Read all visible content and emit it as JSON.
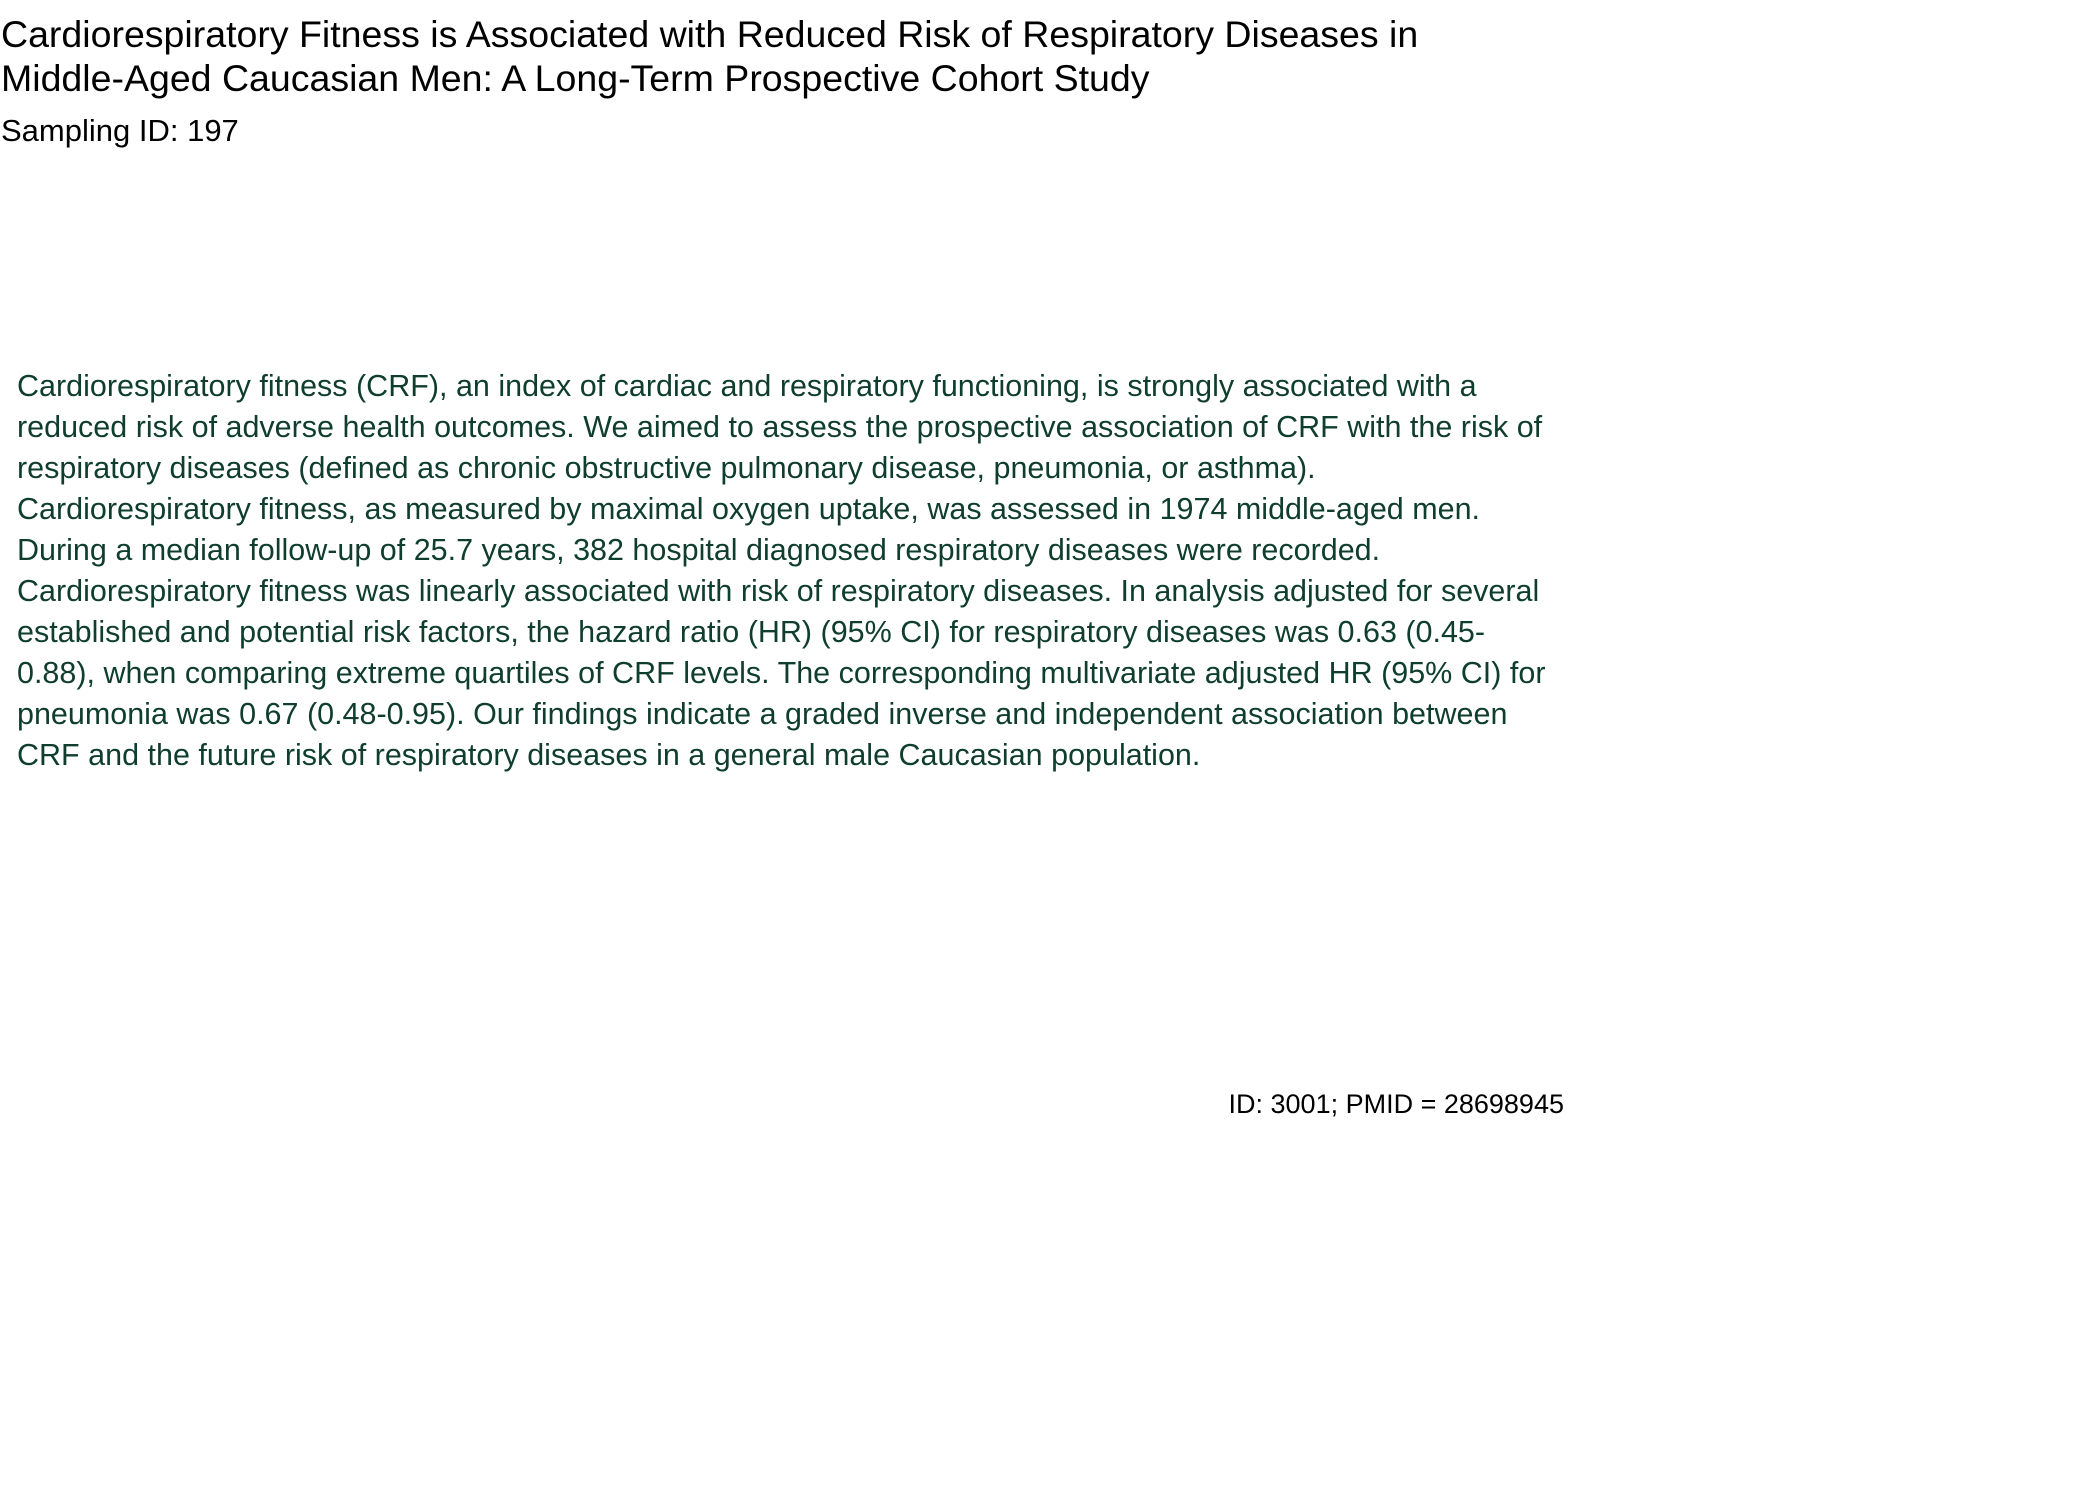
{
  "document": {
    "title": "Cardiorespiratory Fitness is Associated with Reduced Risk of Respiratory Diseases in Middle-Aged Caucasian Men: A Long-Term Prospective Cohort Study",
    "sampling_id": "Sampling ID: 197",
    "abstract": "Cardiorespiratory fitness (CRF), an index of cardiac and respiratory functioning, is strongly associated with a reduced risk of adverse health outcomes. We aimed to assess the prospective association of CRF with the risk of respiratory diseases (defined as chronic obstructive pulmonary disease, pneumonia, or asthma). Cardiorespiratory fitness, as measured by maximal oxygen uptake, was assessed in 1974 middle-aged men. During a median follow-up of 25.7 years, 382 hospital diagnosed respiratory diseases were recorded. Cardiorespiratory fitness was linearly associated with risk of respiratory diseases. In analysis adjusted for several established and potential risk factors, the hazard ratio (HR) (95% CI) for respiratory diseases was 0.63 (0.45-0.88), when comparing extreme quartiles of CRF levels. The corresponding multivariate adjusted HR (95% CI) for pneumonia was 0.67 (0.48-0.95). Our findings indicate a graded inverse and independent association between CRF and the future risk of respiratory diseases in a general male Caucasian population.",
    "footer_id": "ID: 3001; PMID = 28698945"
  },
  "colors": {
    "title_text": "#000000",
    "abstract_text": "#0f3d2e",
    "background": "#ffffff"
  }
}
